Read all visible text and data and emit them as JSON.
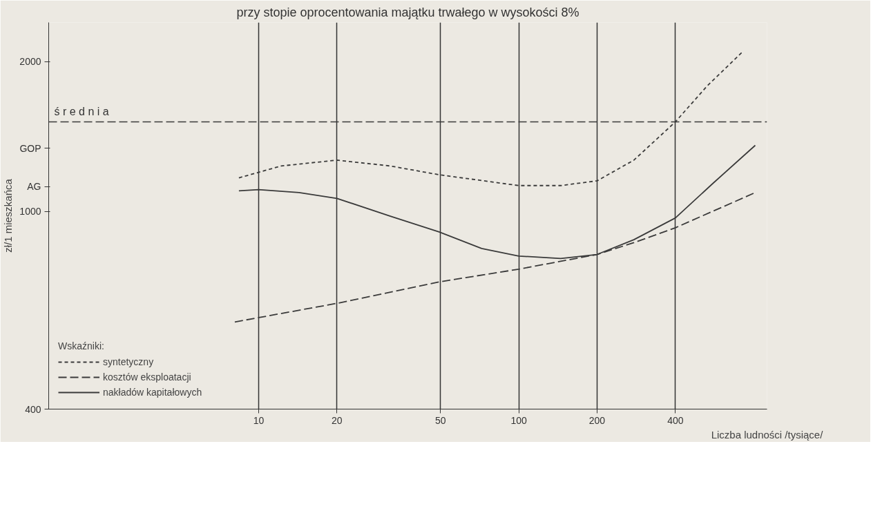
{
  "chart_data": {
    "type": "line",
    "title": "przy stopie oprocentowania majątku trwałego w wysokości 8%",
    "ylabel": "zł/1 mieszkańca",
    "xlabel": "Liczba ludności /tysiące/",
    "legend_title": "Wskaźniki:",
    "log": "xy",
    "xlim": [
      1.56,
      900
    ],
    "ylim": [
      400,
      2400
    ],
    "xticks": [
      10,
      20,
      50,
      100,
      200,
      400
    ],
    "yticks": [
      400,
      1000,
      2000,
      {
        "value": 1339,
        "label": "GOP"
      },
      {
        "value": 1121,
        "label": "AG"
      }
    ],
    "grid": "x",
    "legend": "bottom left",
    "ref_lines": [
      {
        "axis": "y",
        "value": 1514,
        "label": "ś r e d n i a",
        "line_style": "dashed",
        "color": "#3a3a3a"
      }
    ],
    "series": [
      {
        "name": "syntetyczny",
        "color": "#3a3a3a",
        "line_style": "dotted",
        "x": [
          8.4,
          12.2,
          20,
          32.1,
          49.4,
          100,
          145,
          200,
          277,
          400,
          527,
          728
        ],
        "values": [
          1168,
          1234,
          1268,
          1234,
          1185,
          1127,
          1127,
          1152,
          1268,
          1514,
          1783,
          2099
        ]
      },
      {
        "name": "kosztów eksploatacji",
        "color": "#3a3a3a",
        "line_style": "dashed",
        "x": [
          8.1,
          20,
          50,
          100,
          200,
          277,
          400,
          811
        ],
        "values": [
          599,
          653,
          722,
          765,
          819,
          865,
          927,
          1091
        ]
      },
      {
        "name": "nakładów kapitałowych",
        "color": "#3a3a3a",
        "line_style": "solid",
        "x": [
          8.4,
          10,
          14.3,
          20,
          32.1,
          49.4,
          72,
          100,
          145,
          200,
          277,
          400,
          556,
          811
        ],
        "values": [
          1100,
          1106,
          1091,
          1062,
          978,
          909,
          842,
          813,
          804,
          819,
          877,
          970,
          1137,
          1358
        ]
      }
    ]
  }
}
